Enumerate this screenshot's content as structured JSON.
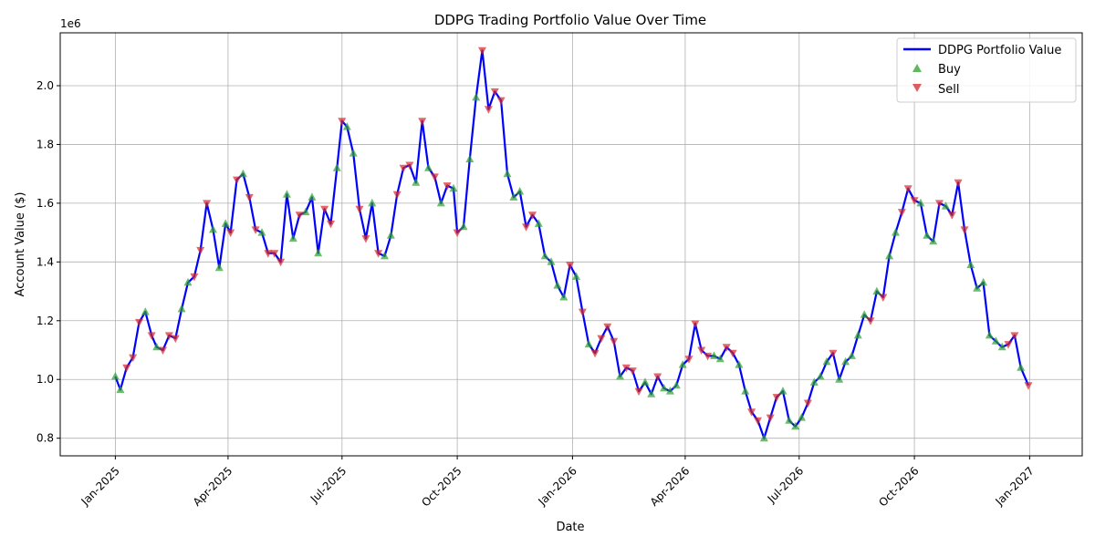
{
  "chart_data": {
    "type": "line",
    "title": "DDPG Trading Portfolio Value Over Time",
    "xlabel": "Date",
    "ylabel": "Account Value ($)",
    "y_offset_label": "1e6",
    "y_scale": 1000000,
    "ylim": [
      740000,
      2180000
    ],
    "xlim": [
      "2024-11-18",
      "2027-02-12"
    ],
    "grid": true,
    "legend_position": "top-right",
    "x_ticks": [
      {
        "date": "2025-01-01",
        "label": "Jan-2025"
      },
      {
        "date": "2025-04-01",
        "label": "Apr-2025"
      },
      {
        "date": "2025-07-01",
        "label": "Jul-2025"
      },
      {
        "date": "2025-10-01",
        "label": "Oct-2025"
      },
      {
        "date": "2026-01-01",
        "label": "Jan-2026"
      },
      {
        "date": "2026-04-01",
        "label": "Apr-2026"
      },
      {
        "date": "2026-07-01",
        "label": "Jul-2026"
      },
      {
        "date": "2026-10-01",
        "label": "Oct-2026"
      },
      {
        "date": "2027-01-01",
        "label": "Jan-2027"
      }
    ],
    "y_ticks": [
      {
        "value": 800000,
        "label": "0.8"
      },
      {
        "value": 1000000,
        "label": "1.0"
      },
      {
        "value": 1200000,
        "label": "1.2"
      },
      {
        "value": 1400000,
        "label": "1.4"
      },
      {
        "value": 1600000,
        "label": "1.6"
      },
      {
        "value": 1800000,
        "label": "1.8"
      },
      {
        "value": 2000000,
        "label": "2.0"
      }
    ],
    "series": [
      {
        "name": "DDPG Portfolio Value",
        "color": "#0000ff",
        "x": [
          "2025-01-01",
          "2025-01-05",
          "2025-01-10",
          "2025-01-15",
          "2025-01-20",
          "2025-01-25",
          "2025-01-30",
          "2025-02-03",
          "2025-02-08",
          "2025-02-13",
          "2025-02-18",
          "2025-02-23",
          "2025-02-28",
          "2025-03-05",
          "2025-03-10",
          "2025-03-15",
          "2025-03-20",
          "2025-03-25",
          "2025-03-30",
          "2025-04-03",
          "2025-04-08",
          "2025-04-13",
          "2025-04-18",
          "2025-04-23",
          "2025-04-28",
          "2025-05-03",
          "2025-05-08",
          "2025-05-13",
          "2025-05-18",
          "2025-05-23",
          "2025-05-28",
          "2025-06-02",
          "2025-06-07",
          "2025-06-12",
          "2025-06-17",
          "2025-06-22",
          "2025-06-27",
          "2025-07-01",
          "2025-07-05",
          "2025-07-10",
          "2025-07-15",
          "2025-07-20",
          "2025-07-25",
          "2025-07-30",
          "2025-08-04",
          "2025-08-09",
          "2025-08-14",
          "2025-08-19",
          "2025-08-24",
          "2025-08-29",
          "2025-09-03",
          "2025-09-08",
          "2025-09-13",
          "2025-09-18",
          "2025-09-23",
          "2025-09-28",
          "2025-10-01",
          "2025-10-06",
          "2025-10-11",
          "2025-10-16",
          "2025-10-21",
          "2025-10-26",
          "2025-10-31",
          "2025-11-05",
          "2025-11-10",
          "2025-11-15",
          "2025-11-20",
          "2025-11-25",
          "2025-11-30",
          "2025-12-05",
          "2025-12-10",
          "2025-12-15",
          "2025-12-20",
          "2025-12-25",
          "2025-12-30",
          "2026-01-04",
          "2026-01-09",
          "2026-01-14",
          "2026-01-19",
          "2026-01-24",
          "2026-01-29",
          "2026-02-03",
          "2026-02-08",
          "2026-02-13",
          "2026-02-18",
          "2026-02-23",
          "2026-02-28",
          "2026-03-05",
          "2026-03-10",
          "2026-03-15",
          "2026-03-20",
          "2026-03-25",
          "2026-03-30",
          "2026-04-04",
          "2026-04-09",
          "2026-04-14",
          "2026-04-19",
          "2026-04-24",
          "2026-04-29",
          "2026-05-04",
          "2026-05-09",
          "2026-05-14",
          "2026-05-19",
          "2026-05-24",
          "2026-05-29",
          "2026-06-03",
          "2026-06-08",
          "2026-06-13",
          "2026-06-18",
          "2026-06-23",
          "2026-06-28",
          "2026-07-03",
          "2026-07-08",
          "2026-07-13",
          "2026-07-18",
          "2026-07-23",
          "2026-07-28",
          "2026-08-02",
          "2026-08-07",
          "2026-08-12",
          "2026-08-17",
          "2026-08-22",
          "2026-08-27",
          "2026-09-01",
          "2026-09-06",
          "2026-09-11",
          "2026-09-16",
          "2026-09-21",
          "2026-09-26",
          "2026-10-01",
          "2026-10-06",
          "2026-10-11",
          "2026-10-16",
          "2026-10-21",
          "2026-10-26",
          "2026-10-31",
          "2026-11-05",
          "2026-11-10",
          "2026-11-15",
          "2026-11-20",
          "2026-11-25",
          "2026-11-30",
          "2026-12-05",
          "2026-12-10",
          "2026-12-15",
          "2026-12-20",
          "2026-12-25",
          "2026-12-31"
        ],
        "values": [
          1010000,
          965000,
          1040000,
          1075000,
          1195000,
          1230000,
          1150000,
          1110000,
          1100000,
          1150000,
          1140000,
          1240000,
          1330000,
          1350000,
          1440000,
          1600000,
          1510000,
          1380000,
          1530000,
          1500000,
          1680000,
          1700000,
          1620000,
          1510000,
          1500000,
          1430000,
          1430000,
          1400000,
          1630000,
          1480000,
          1560000,
          1570000,
          1620000,
          1430000,
          1580000,
          1530000,
          1720000,
          1880000,
          1860000,
          1770000,
          1580000,
          1480000,
          1600000,
          1430000,
          1420000,
          1490000,
          1630000,
          1720000,
          1730000,
          1670000,
          1880000,
          1720000,
          1690000,
          1600000,
          1660000,
          1650000,
          1500000,
          1520000,
          1750000,
          1960000,
          2120000,
          1920000,
          1980000,
          1950000,
          1700000,
          1620000,
          1640000,
          1520000,
          1560000,
          1530000,
          1420000,
          1400000,
          1320000,
          1280000,
          1390000,
          1350000,
          1230000,
          1120000,
          1090000,
          1140000,
          1180000,
          1130000,
          1010000,
          1040000,
          1030000,
          960000,
          990000,
          950000,
          1010000,
          970000,
          960000,
          980000,
          1050000,
          1070000,
          1190000,
          1100000,
          1080000,
          1080000,
          1070000,
          1110000,
          1090000,
          1050000,
          960000,
          890000,
          860000,
          800000,
          870000,
          940000,
          960000,
          860000,
          840000,
          870000,
          920000,
          990000,
          1010000,
          1060000,
          1090000,
          1000000,
          1060000,
          1080000,
          1150000,
          1220000,
          1200000,
          1300000,
          1280000,
          1420000,
          1500000,
          1570000,
          1650000,
          1610000,
          1600000,
          1490000,
          1470000,
          1600000,
          1590000,
          1560000,
          1670000,
          1510000,
          1390000,
          1310000,
          1330000,
          1150000,
          1130000,
          1110000,
          1120000,
          1150000,
          1040000,
          980000
        ]
      }
    ],
    "markers": [
      {
        "name": "Buy",
        "symbol": "triangle-up",
        "color": "#2ca02c",
        "dates": [
          "2025-01-01",
          "2025-01-05",
          "2025-01-25",
          "2025-02-03",
          "2025-02-23",
          "2025-02-28",
          "2025-03-20",
          "2025-03-25",
          "2025-03-30",
          "2025-04-13",
          "2025-04-28",
          "2025-05-18",
          "2025-05-23",
          "2025-06-02",
          "2025-06-07",
          "2025-06-12",
          "2025-06-27",
          "2025-07-05",
          "2025-07-10",
          "2025-07-25",
          "2025-08-04",
          "2025-08-09",
          "2025-08-29",
          "2025-09-08",
          "2025-09-18",
          "2025-09-28",
          "2025-10-06",
          "2025-10-11",
          "2025-10-16",
          "2025-11-10",
          "2025-11-15",
          "2025-11-20",
          "2025-12-05",
          "2025-12-10",
          "2025-12-15",
          "2025-12-20",
          "2025-12-25",
          "2026-01-04",
          "2026-01-14",
          "2026-02-08",
          "2026-02-28",
          "2026-03-05",
          "2026-03-15",
          "2026-03-20",
          "2026-03-25",
          "2026-03-30",
          "2026-04-24",
          "2026-04-29",
          "2026-05-14",
          "2026-05-19",
          "2026-06-03",
          "2026-06-18",
          "2026-06-23",
          "2026-06-28",
          "2026-07-03",
          "2026-07-13",
          "2026-07-18",
          "2026-07-23",
          "2026-08-02",
          "2026-08-07",
          "2026-08-12",
          "2026-08-17",
          "2026-08-22",
          "2026-09-01",
          "2026-09-11",
          "2026-09-16",
          "2026-10-06",
          "2026-10-11",
          "2026-10-16",
          "2026-10-26",
          "2026-11-15",
          "2026-11-20",
          "2026-11-25",
          "2026-11-30",
          "2026-12-05",
          "2026-12-10",
          "2026-12-25"
        ]
      },
      {
        "name": "Sell",
        "symbol": "triangle-down",
        "color": "#d62728",
        "dates": [
          "2025-01-10",
          "2025-01-15",
          "2025-01-20",
          "2025-01-30",
          "2025-02-08",
          "2025-02-13",
          "2025-02-18",
          "2025-03-05",
          "2025-03-10",
          "2025-03-15",
          "2025-04-03",
          "2025-04-08",
          "2025-04-18",
          "2025-04-23",
          "2025-05-03",
          "2025-05-08",
          "2025-05-13",
          "2025-05-28",
          "2025-06-17",
          "2025-06-22",
          "2025-07-01",
          "2025-07-15",
          "2025-07-20",
          "2025-07-30",
          "2025-08-14",
          "2025-08-19",
          "2025-08-24",
          "2025-09-03",
          "2025-09-13",
          "2025-09-23",
          "2025-10-01",
          "2025-10-21",
          "2025-10-26",
          "2025-10-31",
          "2025-11-05",
          "2025-11-25",
          "2025-11-30",
          "2025-12-30",
          "2026-01-09",
          "2026-01-19",
          "2026-01-24",
          "2026-01-29",
          "2026-02-03",
          "2026-02-13",
          "2026-02-18",
          "2026-02-23",
          "2026-03-10",
          "2026-04-04",
          "2026-04-09",
          "2026-04-14",
          "2026-04-19",
          "2026-05-04",
          "2026-05-09",
          "2026-05-24",
          "2026-05-29",
          "2026-06-08",
          "2026-06-13",
          "2026-07-08",
          "2026-07-28",
          "2026-08-27",
          "2026-09-06",
          "2026-09-21",
          "2026-09-26",
          "2026-10-01",
          "2026-10-21",
          "2026-10-31",
          "2026-11-05",
          "2026-11-10",
          "2026-12-15",
          "2026-12-20",
          "2026-12-31"
        ]
      }
    ]
  }
}
